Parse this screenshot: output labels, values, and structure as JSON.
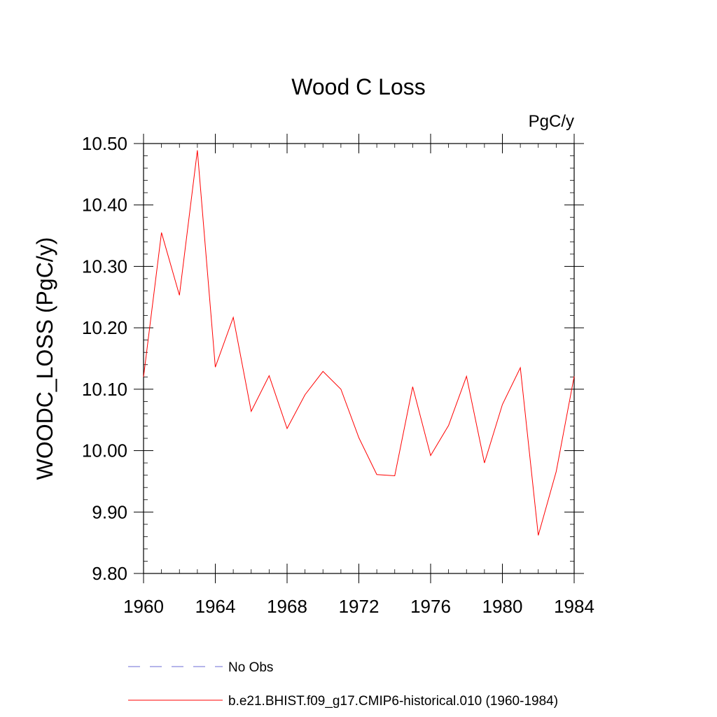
{
  "chart_data": {
    "type": "line",
    "title": "Wood C Loss",
    "units_label": "PgC/y",
    "ylabel": "WOODC_LOSS  (PgC/y)",
    "xlabel": "",
    "xlim": [
      1960,
      1984
    ],
    "ylim": [
      9.8,
      10.5
    ],
    "x_ticks": [
      1960,
      1964,
      1968,
      1972,
      1976,
      1980,
      1984
    ],
    "x_tick_labels": [
      "1960",
      "1964",
      "1968",
      "1972",
      "1976",
      "1980",
      "1984"
    ],
    "y_ticks": [
      9.8,
      9.9,
      10.0,
      10.1,
      10.2,
      10.3,
      10.4,
      10.5
    ],
    "y_tick_labels": [
      "9.80",
      "9.90",
      "10.00",
      "10.10",
      "10.20",
      "10.30",
      "10.40",
      "10.50"
    ],
    "grid": false,
    "legend_position": "bottom",
    "series": [
      {
        "name": "No Obs",
        "color": "#6b6bd6",
        "dash": true,
        "x": [],
        "values": []
      },
      {
        "name": "b.e21.BHIST.f09_g17.CMIP6-historical.010 (1960-1984)",
        "color": "#ff0000",
        "dash": false,
        "x": [
          1960,
          1961,
          1962,
          1963,
          1964,
          1965,
          1966,
          1967,
          1968,
          1969,
          1970,
          1971,
          1972,
          1973,
          1974,
          1975,
          1976,
          1977,
          1978,
          1979,
          1980,
          1981,
          1982,
          1983,
          1984
        ],
        "values": [
          10.12,
          10.355,
          10.253,
          10.489,
          10.136,
          10.217,
          10.064,
          10.122,
          10.036,
          10.091,
          10.129,
          10.1,
          10.021,
          9.961,
          9.959,
          10.104,
          9.992,
          10.041,
          10.121,
          9.98,
          10.075,
          10.135,
          9.862,
          9.966,
          10.121
        ]
      }
    ]
  }
}
